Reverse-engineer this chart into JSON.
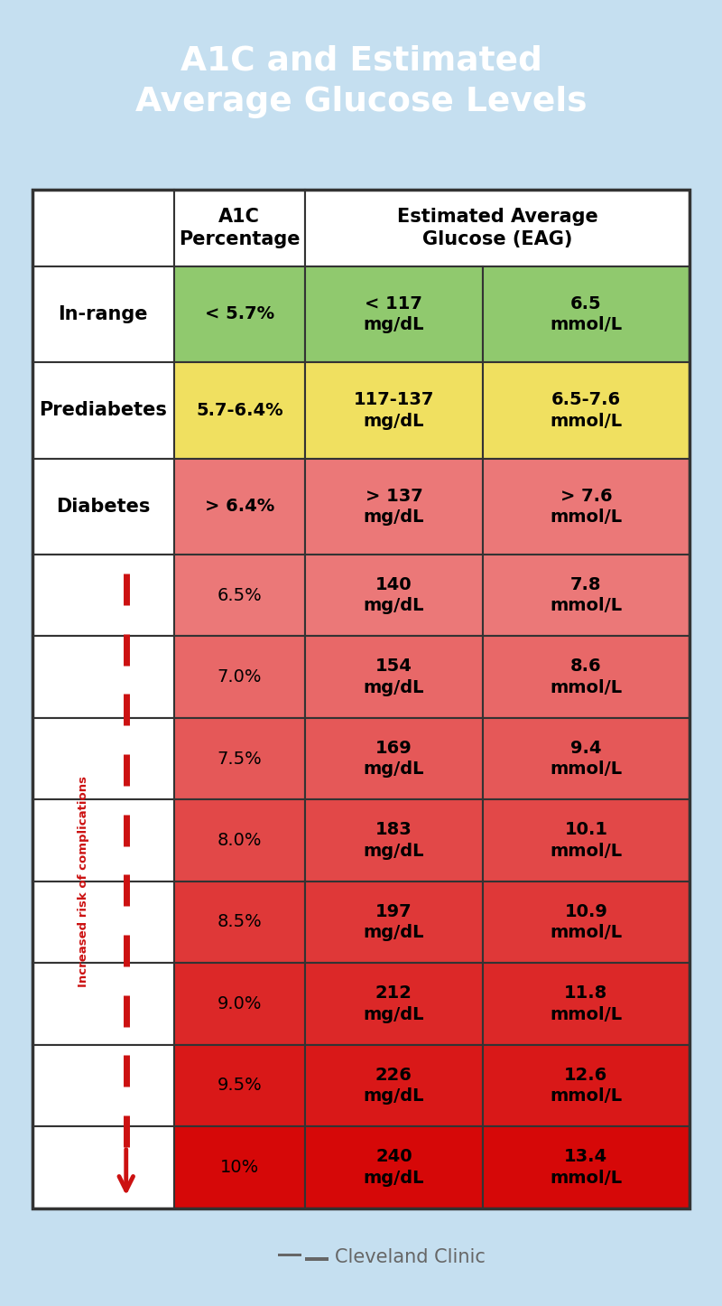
{
  "title": "A1C and Estimated\nAverage Glucose Levels",
  "title_bg": "#1b9fd0",
  "title_color": "#ffffff",
  "bg_color": "#c5dff0",
  "header_fontsize": 15,
  "cell_fontsize": 14,
  "label_fontsize": 15,
  "summary_rows": [
    {
      "label": "In-range",
      "a1c": "< 5.7%",
      "mgdl": "< 117\nmg/dL",
      "mmol": "6.5\nmmol/L",
      "color": "#90c96e"
    },
    {
      "label": "Prediabetes",
      "a1c": "5.7-6.4%",
      "mgdl": "117-137\nmg/dL",
      "mmol": "6.5-7.6\nmmol/L",
      "color": "#f0e060"
    },
    {
      "label": "Diabetes",
      "a1c": "> 6.4%",
      "mgdl": "> 137\nmg/dL",
      "mmol": "> 7.6\nmmol/L",
      "color": "#eb7878"
    }
  ],
  "detail_rows": [
    {
      "a1c": "6.5%",
      "mgdl": "140\nmg/dL",
      "mmol": "7.8\nmmol/L",
      "color": "#eb7878"
    },
    {
      "a1c": "7.0%",
      "mgdl": "154\nmg/dL",
      "mmol": "8.6\nmmol/L",
      "color": "#e86868"
    },
    {
      "a1c": "7.5%",
      "mgdl": "169\nmg/dL",
      "mmol": "9.4\nmmol/L",
      "color": "#e55858"
    },
    {
      "a1c": "8.0%",
      "mgdl": "183\nmg/dL",
      "mmol": "10.1\nmmol/L",
      "color": "#e24848"
    },
    {
      "a1c": "8.5%",
      "mgdl": "197\nmg/dL",
      "mmol": "10.9\nmmol/L",
      "color": "#df3838"
    },
    {
      "a1c": "9.0%",
      "mgdl": "212\nmg/dL",
      "mmol": "11.8\nmmol/L",
      "color": "#dc2828"
    },
    {
      "a1c": "9.5%",
      "mgdl": "226\nmg/dL",
      "mmol": "12.6\nmmol/L",
      "color": "#d91818"
    },
    {
      "a1c": "10%",
      "mgdl": "240\nmg/dL",
      "mmol": "13.4\nmmol/L",
      "color": "#d60808"
    }
  ],
  "arrow_label": "Increased risk of complications",
  "arrow_color": "#cc1111",
  "footer_text": "Cleveland Clinic",
  "border_color": "#333333",
  "border_lw": 1.5
}
